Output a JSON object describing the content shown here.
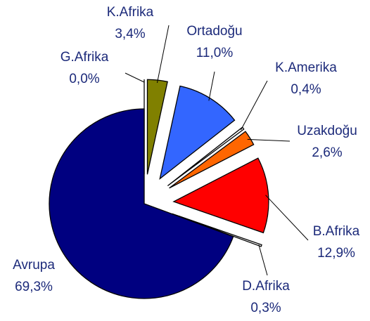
{
  "chart_data": {
    "type": "pie",
    "categories": [
      "G.Afrika",
      "K.Afrika",
      "Ortadoğu",
      "K.Amerika",
      "Uzakdoğu",
      "B.Afrika",
      "D.Afrika",
      "Avrupa"
    ],
    "values": [
      0.0,
      3.4,
      11.0,
      0.4,
      2.6,
      12.9,
      0.3,
      69.3
    ],
    "value_labels": [
      "0,0%",
      "3,4%",
      "11,0%",
      "0,4%",
      "2,6%",
      "12,9%",
      "0,3%",
      "69,3%"
    ],
    "colors": [
      "#ffff99",
      "#808000",
      "#3366ff",
      "#ffffff",
      "#ff6600",
      "#ff0000",
      "#ffffff",
      "#000080"
    ],
    "exploded": [
      "G.Afrika",
      "K.Afrika",
      "Ortadoğu",
      "K.Amerika",
      "Uzakdoğu",
      "B.Afrika",
      "D.Afrika"
    ]
  }
}
